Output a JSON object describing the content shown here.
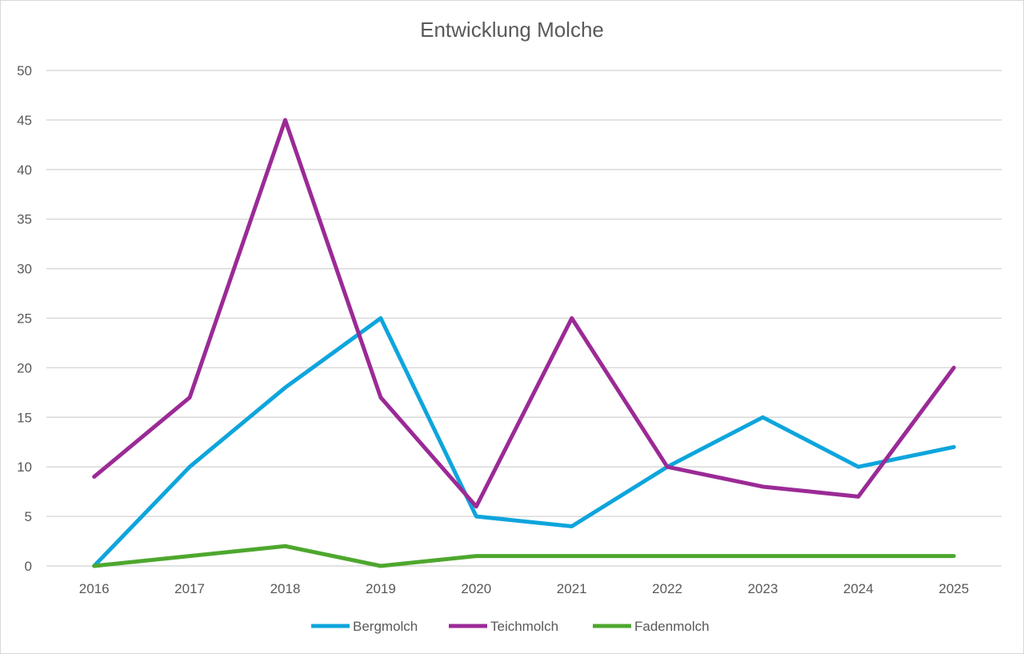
{
  "chart_data": {
    "type": "line",
    "title": "Entwicklung Molche",
    "categories": [
      "2016",
      "2017",
      "2018",
      "2019",
      "2020",
      "2021",
      "2022",
      "2023",
      "2024",
      "2025"
    ],
    "series": [
      {
        "name": "Bergmolch",
        "color": "#0ea5dc",
        "values": [
          0,
          10,
          18,
          25,
          5,
          4,
          10,
          15,
          10,
          12
        ]
      },
      {
        "name": "Teichmolch",
        "color": "#9b2a96",
        "values": [
          9,
          17,
          45,
          17,
          6,
          25,
          10,
          8,
          7,
          20
        ]
      },
      {
        "name": "Fadenmolch",
        "color": "#4ea72e",
        "values": [
          0,
          1,
          2,
          0,
          1,
          1,
          1,
          1,
          1,
          1
        ]
      }
    ],
    "yticks": [
      "0",
      "5",
      "10",
      "15",
      "20",
      "25",
      "30",
      "35",
      "40",
      "45",
      "50"
    ],
    "ylim": [
      0,
      50
    ],
    "grid": true,
    "legend": "bottom",
    "xlabel": "",
    "ylabel": ""
  }
}
